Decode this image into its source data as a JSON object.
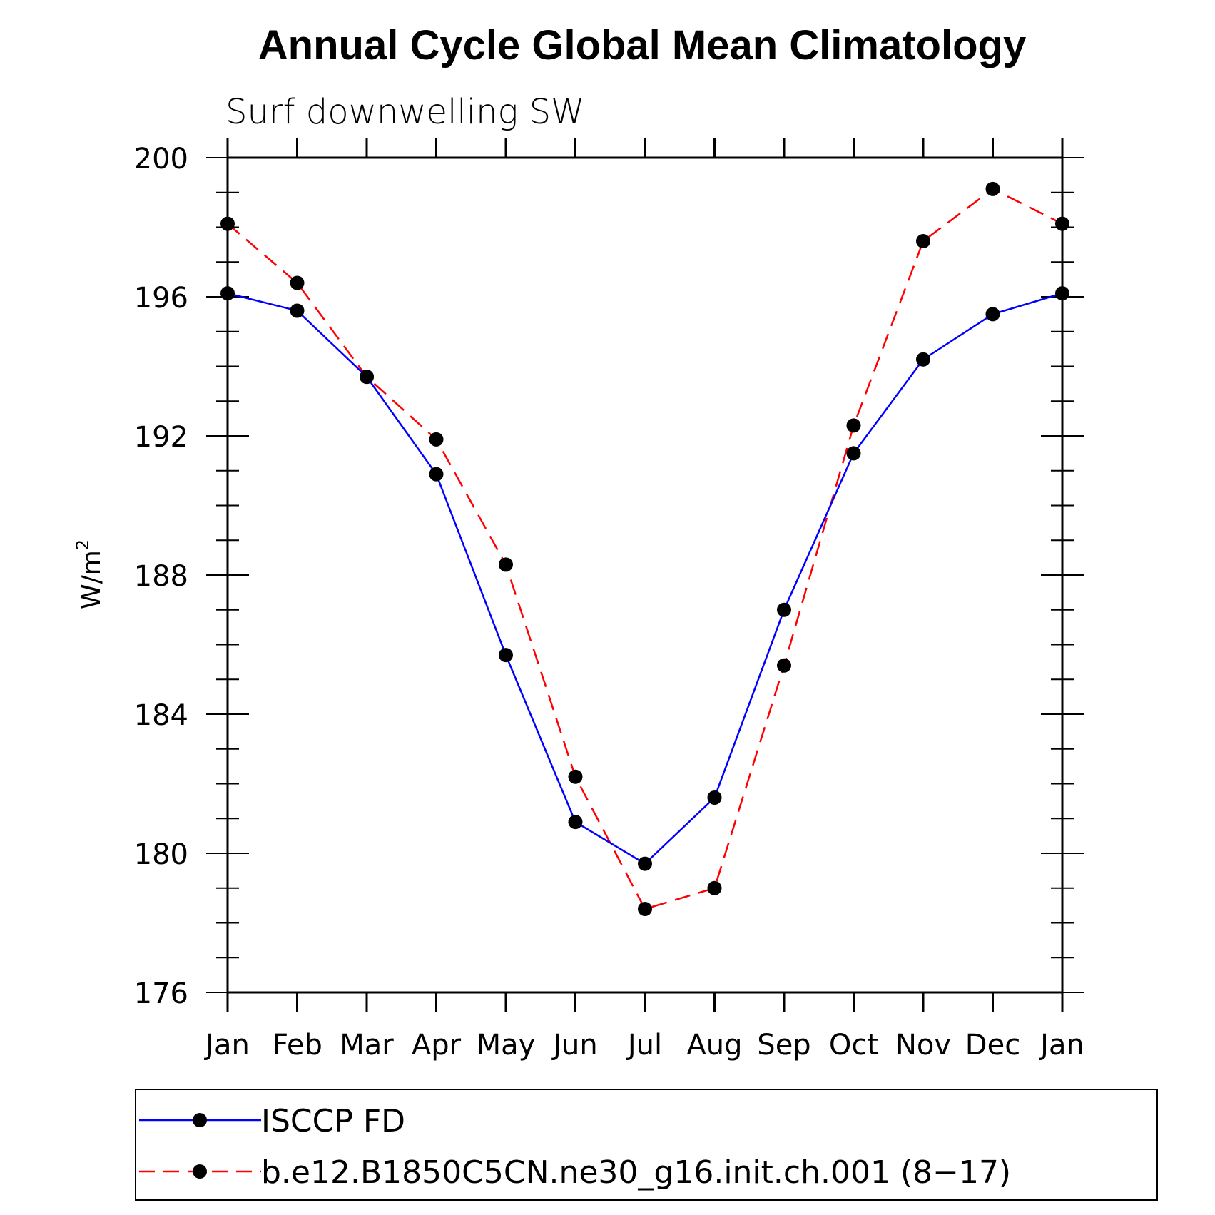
{
  "chart_data": {
    "type": "line",
    "title": "Annual Cycle Global Mean Climatology",
    "subtitle": "Surf downwelling SW",
    "ylabel": "W/m",
    "ylabel_sup": "2",
    "xlabel": "",
    "categories": [
      "Jan",
      "Feb",
      "Mar",
      "Apr",
      "May",
      "Jun",
      "Jul",
      "Aug",
      "Sep",
      "Oct",
      "Nov",
      "Dec",
      "Jan"
    ],
    "ylim": [
      176,
      200
    ],
    "yticks": [
      176,
      180,
      184,
      188,
      192,
      196,
      200
    ],
    "grid": false,
    "legend_position": "bottom",
    "series": [
      {
        "name": "ISCCP FD",
        "color": "#0000ff",
        "dash": "solid",
        "marker": "circle",
        "values": [
          196.1,
          195.6,
          193.7,
          190.9,
          185.7,
          180.9,
          179.7,
          181.6,
          187.0,
          191.5,
          194.2,
          195.5,
          196.1
        ]
      },
      {
        "name": "b.e12.B1850C5CN.ne30_g16.init.ch.001 (8−17)",
        "color": "#ff0000",
        "dash": "dashed",
        "marker": "circle",
        "values": [
          198.1,
          196.4,
          193.7,
          191.9,
          188.3,
          182.2,
          178.4,
          179.0,
          185.4,
          192.3,
          197.6,
          199.1,
          198.1
        ]
      }
    ]
  }
}
